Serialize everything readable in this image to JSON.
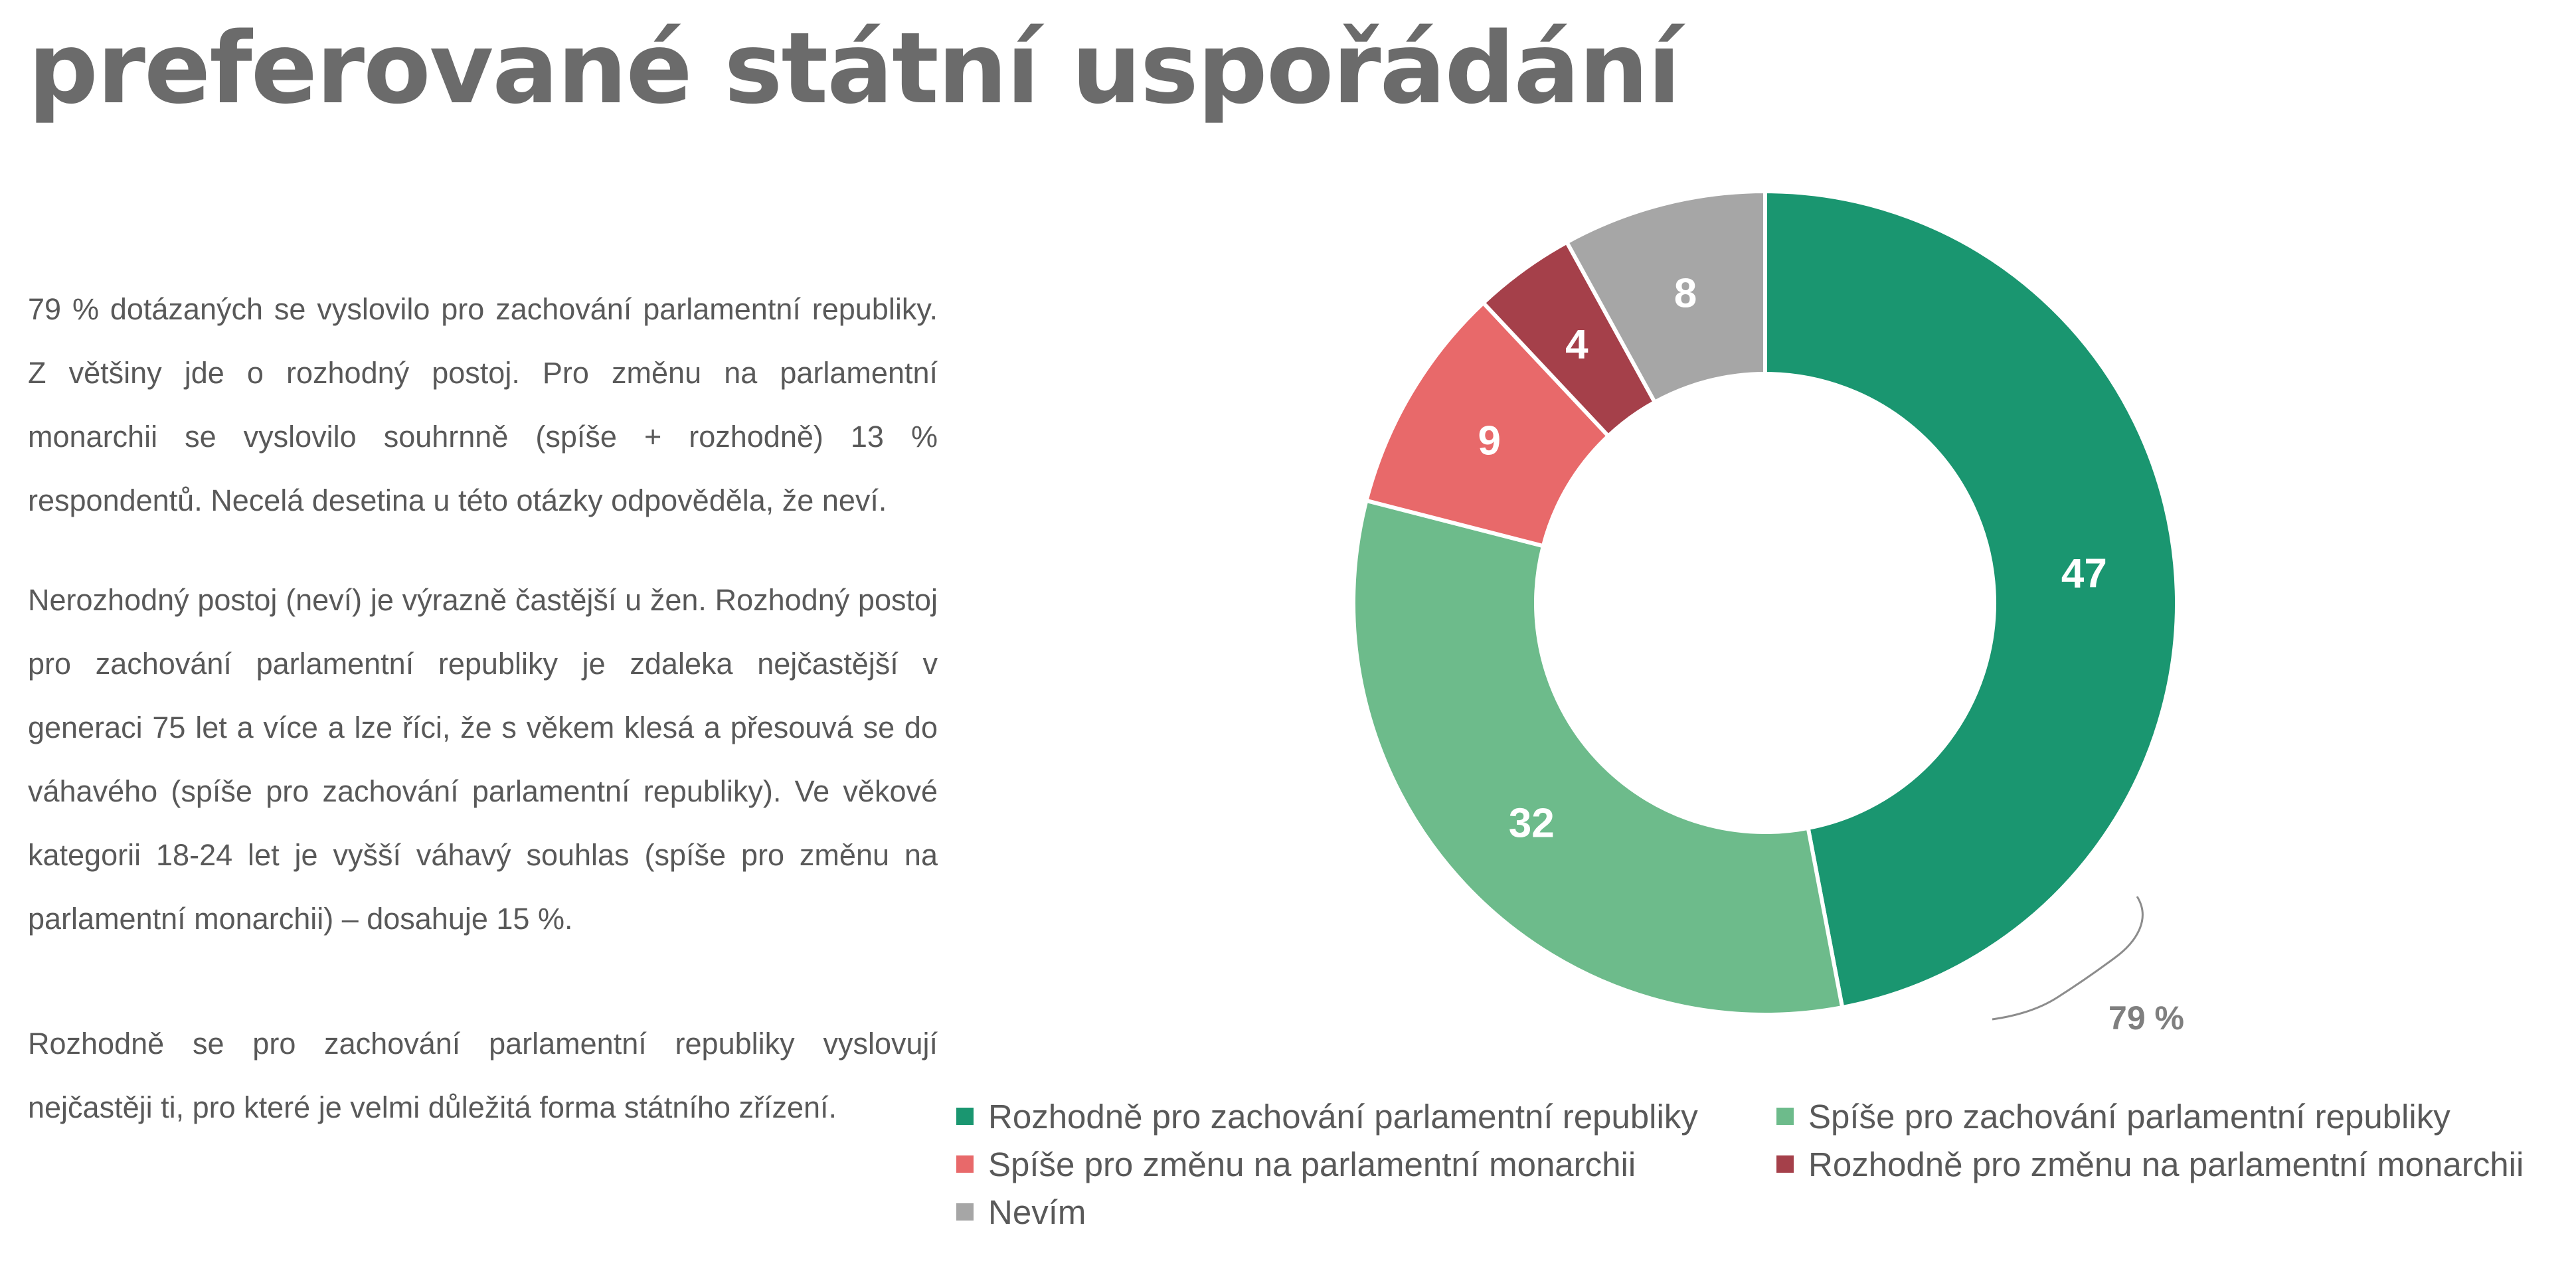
{
  "title": "preferované státní uspořádání",
  "paragraphs": [
    "79 % dotázaných se vyslovilo pro zachování parlamentní republiky. Z většiny jde o rozhodný postoj. Pro změnu na parlamentní monarchii se vyslovilo souhrnně (spíše + rozhodně) 13 % respondentů. Necelá desetina u této otázky odpověděla, že neví.",
    "Nerozhodný postoj (neví) je výrazně častější u žen. Rozhodný postoj pro zachování parlamentní republiky je zdaleka nejčastější v generaci 75 let a více a lze říci, že s věkem klesá a přesouvá se do váhavého (spíše pro zachování parlamentní republiky). Ve věkové kategorii 18-24 let je vyšší váhavý souhlas (spíše pro změnu na parlamentní monarchii) – dosahuje 15 %.",
    "Rozhodně se pro zachování parlamentní republiky vyslovují nejčastěji ti, pro které je velmi důležitá forma státního zřízení."
  ],
  "chart_data": {
    "type": "pie",
    "variant": "donut",
    "categories": [
      "Rozhodně pro zachování parlamentní republiky",
      "Spíše pro zachování parlamentní republiky",
      "Spíše pro změnu na parlamentní monarchii",
      "Rozhodně pro změnu na parlamentní monarchii",
      "Nevím"
    ],
    "values": [
      47,
      32,
      9,
      4,
      8
    ],
    "data_labels": [
      "47",
      "32",
      "9",
      "4",
      "8"
    ],
    "colors": [
      "#1a9670",
      "#6dbb8b",
      "#e8696a",
      "#a5404a",
      "#a6a6a6"
    ],
    "annotation": "79 %",
    "legend_position": "bottom"
  }
}
